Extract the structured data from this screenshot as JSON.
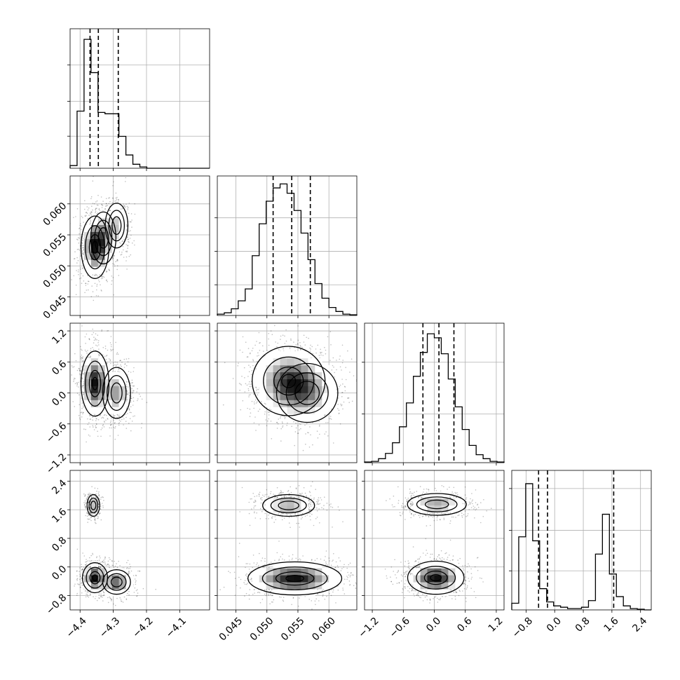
{
  "chart_data": {
    "type": "corner",
    "n_params": 4,
    "grid": true,
    "parameters": [
      {
        "range": [
          -4.43,
          -4.01
        ],
        "ticks": [
          {
            "value": -4.4,
            "label": "−4.4"
          },
          {
            "value": -4.3,
            "label": "−4.3"
          },
          {
            "value": -4.2,
            "label": "−4.2"
          },
          {
            "value": -4.1,
            "label": "−4.1"
          }
        ],
        "quantiles": [
          -4.37,
          -4.345,
          -4.285
        ],
        "hist": [
          0.02,
          0.43,
          0.97,
          0.72,
          0.42,
          0.41,
          0.41,
          0.24,
          0.1,
          0.03,
          0.01,
          0,
          0,
          0,
          0,
          0,
          0,
          0,
          0,
          0
        ],
        "hist_max_label_ticks": [
          0.23,
          0.48,
          0.74
        ]
      },
      {
        "range": [
          0.042,
          0.0645
        ],
        "ticks": [
          {
            "value": 0.045,
            "label": "0.045"
          },
          {
            "value": 0.05,
            "label": "0.050"
          },
          {
            "value": 0.055,
            "label": "0.055"
          },
          {
            "value": 0.06,
            "label": "0.060"
          }
        ],
        "quantiles": [
          0.051,
          0.054,
          0.057
        ],
        "hist": [
          0.01,
          0.02,
          0.05,
          0.11,
          0.2,
          0.45,
          0.69,
          0.86,
          0.96,
          0.99,
          0.92,
          0.79,
          0.62,
          0.42,
          0.24,
          0.13,
          0.06,
          0.03,
          0.01,
          0.005
        ],
        "hist_max_label_ticks": [
          0.22,
          0.46,
          0.7
        ]
      },
      {
        "range": [
          -1.35,
          1.35
        ],
        "ticks": [
          {
            "value": -1.2,
            "label": "−1.2"
          },
          {
            "value": -0.6,
            "label": "−0.6"
          },
          {
            "value": 0.0,
            "label": "0.0"
          },
          {
            "value": 0.6,
            "label": "0.6"
          },
          {
            "value": 1.2,
            "label": "1.2"
          }
        ],
        "quantiles": [
          -0.22,
          0.09,
          0.38
        ],
        "hist": [
          0.005,
          0.01,
          0.03,
          0.07,
          0.15,
          0.27,
          0.45,
          0.65,
          0.83,
          0.97,
          0.94,
          0.82,
          0.63,
          0.42,
          0.25,
          0.13,
          0.06,
          0.03,
          0.01,
          0.005
        ],
        "hist_max_label_ticks": [
          0.35,
          0.72
        ]
      },
      {
        "range": [
          -1.2,
          2.7
        ],
        "ticks": [
          {
            "value": -0.8,
            "label": "−0.8"
          },
          {
            "value": 0.0,
            "label": "0.0"
          },
          {
            "value": 0.8,
            "label": "0.8"
          },
          {
            "value": 1.6,
            "label": "1.6"
          },
          {
            "value": 2.4,
            "label": "2.4"
          }
        ],
        "quantiles": [
          -0.45,
          -0.2,
          1.65
        ],
        "hist": [
          0.05,
          0.55,
          0.95,
          0.52,
          0.16,
          0.06,
          0.03,
          0.02,
          0.01,
          0.01,
          0.02,
          0.07,
          0.42,
          0.72,
          0.27,
          0.1,
          0.03,
          0.01,
          0.005,
          0
        ],
        "hist_max_label_ticks": [
          0.28,
          0.57,
          0.87
        ]
      }
    ],
    "pairs": [
      {
        "row": 1,
        "col": 0,
        "blobs": [
          {
            "x": -4.355,
            "y": 0.053,
            "sx": 0.02,
            "sy": 0.0024,
            "w": 1.0
          },
          {
            "x": -4.33,
            "y": 0.0545,
            "sx": 0.02,
            "sy": 0.0022,
            "w": 0.55
          },
          {
            "x": -4.29,
            "y": 0.0565,
            "sx": 0.018,
            "sy": 0.0019,
            "w": 0.45
          }
        ]
      },
      {
        "row": 2,
        "col": 0,
        "blobs": [
          {
            "x": -4.355,
            "y": 0.18,
            "sx": 0.02,
            "sy": 0.3,
            "w": 1.0
          },
          {
            "x": -4.29,
            "y": 0.0,
            "sx": 0.022,
            "sy": 0.26,
            "w": 0.55
          }
        ]
      },
      {
        "row": 2,
        "col": 1,
        "blobs": [
          {
            "x": 0.0535,
            "y": 0.23,
            "sx": 0.0028,
            "sy": 0.32,
            "w": 1.0
          },
          {
            "x": 0.0565,
            "y": 0.0,
            "sx": 0.0026,
            "sy": 0.3,
            "w": 0.6
          }
        ]
      },
      {
        "row": 3,
        "col": 0,
        "blobs": [
          {
            "x": -4.36,
            "y": 1.72,
            "sx": 0.01,
            "sy": 0.16,
            "w": 0.55
          },
          {
            "x": -4.355,
            "y": -0.3,
            "sx": 0.018,
            "sy": 0.2,
            "w": 1.0
          },
          {
            "x": -4.29,
            "y": -0.42,
            "sx": 0.022,
            "sy": 0.18,
            "w": 0.8
          }
        ]
      },
      {
        "row": 3,
        "col": 1,
        "blobs": [
          {
            "x": 0.0535,
            "y": 1.72,
            "sx": 0.0022,
            "sy": 0.16,
            "w": 0.55
          },
          {
            "x": 0.0545,
            "y": -0.32,
            "sx": 0.0036,
            "sy": 0.22,
            "w": 1.0
          }
        ]
      },
      {
        "row": 3,
        "col": 2,
        "blobs": [
          {
            "x": 0.05,
            "y": 1.75,
            "sx": 0.3,
            "sy": 0.16,
            "w": 0.55
          },
          {
            "x": 0.03,
            "y": -0.3,
            "sx": 0.26,
            "sy": 0.22,
            "w": 1.0
          }
        ]
      }
    ]
  }
}
